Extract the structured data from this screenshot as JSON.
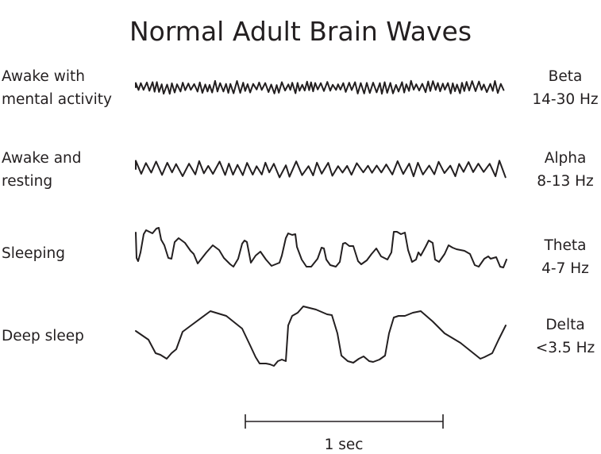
{
  "title": "Normal Adult Brain Waves",
  "rows": [
    {
      "state_lines": [
        "Awake with",
        "mental activity"
      ],
      "wave": "Beta",
      "freq": "14-30 Hz"
    },
    {
      "state_lines": [
        "Awake and",
        "resting"
      ],
      "wave": "Alpha",
      "freq": "8-13 Hz"
    },
    {
      "state_lines": [
        "Sleeping"
      ],
      "wave": "Theta",
      "freq": "4-7 Hz"
    },
    {
      "state_lines": [
        "Deep sleep"
      ],
      "wave": "Delta",
      "freq": "<3.5 Hz"
    }
  ],
  "scale_bar": {
    "label": "1 sec"
  },
  "line_color": "#231f20"
}
